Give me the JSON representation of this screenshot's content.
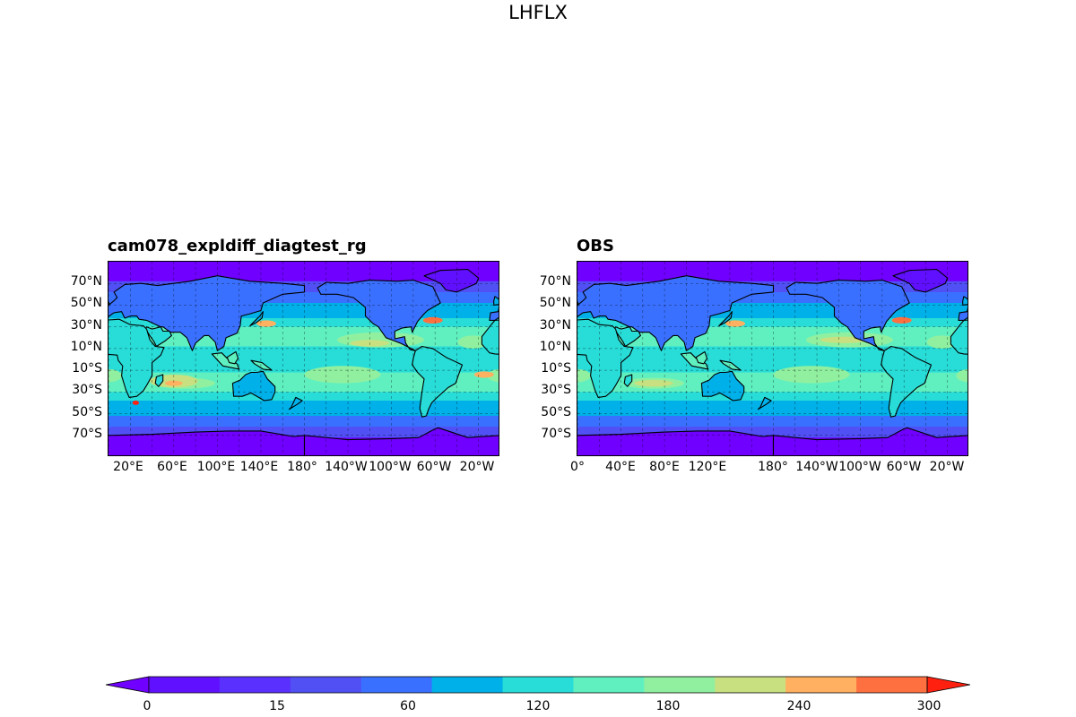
{
  "figure": {
    "title": "LHFLX"
  },
  "panels": [
    {
      "id": "model",
      "title": "cam078_expldiff_diagtest_rg",
      "lat_labels": [
        "70°N",
        "50°N",
        "30°N",
        "10°N",
        "10°S",
        "30°S",
        "50°S",
        "70°S"
      ],
      "lon_labels": [
        "20°E",
        "60°E",
        "100°E",
        "140°E",
        "180°",
        "140°W",
        "100°W",
        "60°W",
        "20°W"
      ]
    },
    {
      "id": "obs",
      "title": "OBS",
      "lat_labels": [
        "70°N",
        "50°N",
        "30°N",
        "10°N",
        "10°S",
        "30°S",
        "50°S",
        "70°S"
      ],
      "lon_labels": [
        "0°",
        "40°E",
        "80°E",
        "120°E",
        "180°",
        "140°W",
        "100°W",
        "60°W",
        "20°W"
      ]
    }
  ],
  "colorbar": {
    "levels": [
      0,
      5,
      10,
      15,
      20,
      40,
      60,
      80,
      100,
      120,
      140,
      160,
      180,
      200,
      220,
      240,
      260,
      280,
      300
    ],
    "tick_labels": [
      "0",
      "15",
      "60",
      "120",
      "180",
      "240",
      "300"
    ],
    "colors": [
      "#7000ff",
      "#6010ff",
      "#5a30ff",
      "#5050f5",
      "#3a70ff",
      "#00b0e8",
      "#28dcd8",
      "#60f0c0",
      "#90f0a0",
      "#c8e080",
      "#ffb060",
      "#ff7040",
      "#ff2010"
    ],
    "extend": "both"
  },
  "chart_data": {
    "type": "heatmap",
    "title": "LHFLX",
    "variable": "LHFLX",
    "subplots": [
      "cam078_expldiff_diagtest_rg",
      "OBS"
    ],
    "color_scale_min": 0,
    "color_scale_max": 300,
    "grid": true
  }
}
